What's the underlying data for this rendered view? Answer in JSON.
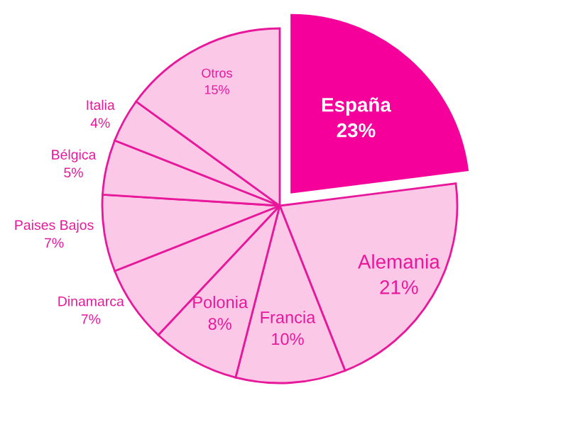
{
  "chart_data": {
    "type": "pie",
    "categories": [
      "España",
      "Alemania",
      "Francia",
      "Polonia",
      "Dinamarca",
      "Paises Bajos",
      "Bélgica",
      "Italia",
      "Otros"
    ],
    "values": [
      23,
      21,
      10,
      8,
      7,
      7,
      5,
      4,
      15
    ],
    "value_labels": [
      "23%",
      "21%",
      "10%",
      "8%",
      "7%",
      "7%",
      "5%",
      "4%",
      "15%"
    ],
    "colors": [
      "#f5009a",
      "#fcc8e8",
      "#fcc8e8",
      "#fcc8e8",
      "#fcc8e8",
      "#fcc8e8",
      "#fcc8e8",
      "#fcc8e8",
      "#fcc8e8"
    ],
    "legend": false
  }
}
